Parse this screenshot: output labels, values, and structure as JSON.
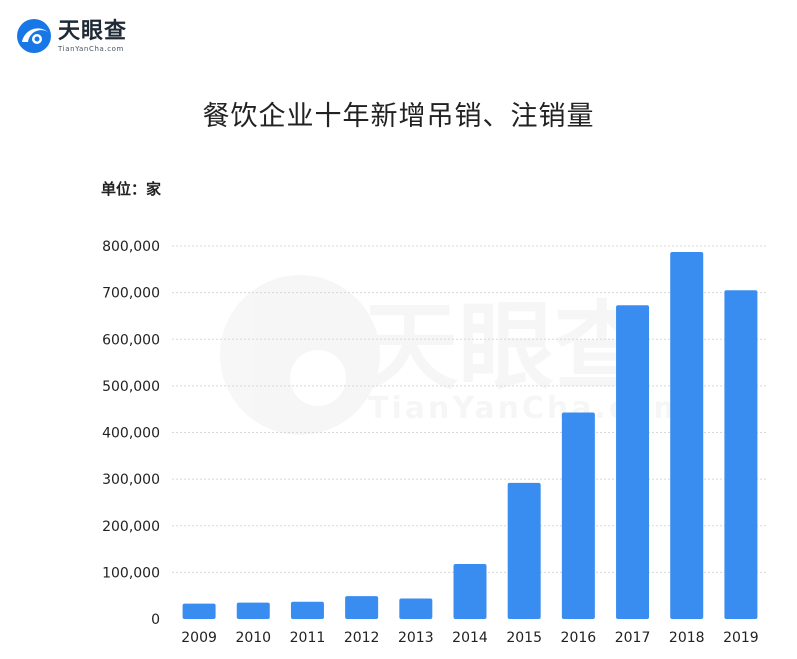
{
  "logo": {
    "name_cn": "天眼查",
    "name_en": "TianYanCha.com"
  },
  "chart_data": {
    "type": "bar",
    "title": "餐饮企业十年新增吊销、注销量",
    "unit_label": "单位：家",
    "categories": [
      "2009",
      "2010",
      "2011",
      "2012",
      "2013",
      "2014",
      "2015",
      "2016",
      "2017",
      "2018",
      "2019"
    ],
    "values": [
      33000,
      35000,
      37000,
      49000,
      44000,
      118000,
      292000,
      443000,
      673000,
      787000,
      705000
    ],
    "y_ticks": [
      "0",
      "100,000",
      "200,000",
      "300,000",
      "400,000",
      "500,000",
      "600,000",
      "700,000",
      "800,000"
    ],
    "ylim": [
      0,
      800000
    ],
    "grid": true,
    "colors": {
      "bar": "#3a8df0",
      "grid": "#d8d8d8",
      "text": "#222222"
    }
  }
}
